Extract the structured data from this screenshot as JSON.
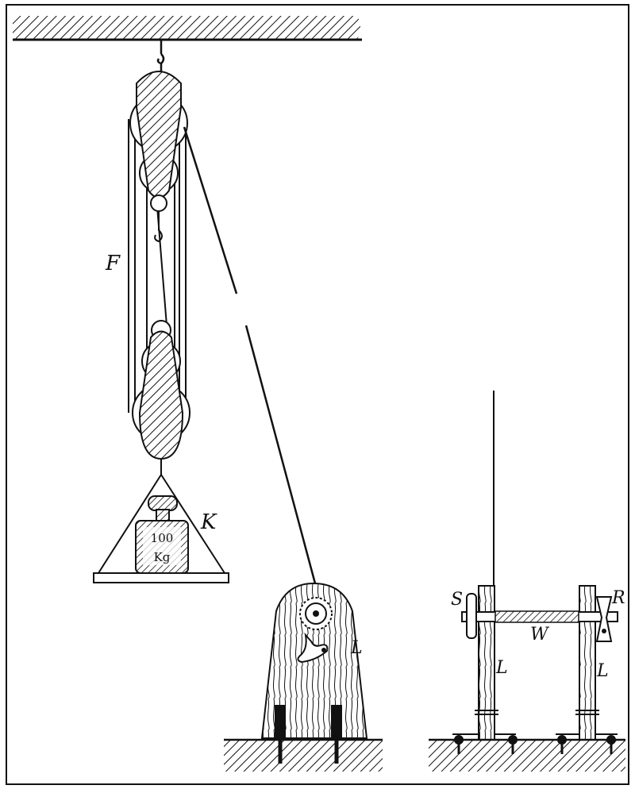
{
  "labels": {
    "F": "F",
    "K": "K",
    "L_left": "L",
    "S": "S",
    "R": "R",
    "W": "W",
    "L_frame_left": "L",
    "L_frame_right": "L"
  },
  "weight": {
    "value": "100",
    "unit": "Kg"
  },
  "colors": {
    "ink": "#111111",
    "paper": "#ffffff"
  }
}
